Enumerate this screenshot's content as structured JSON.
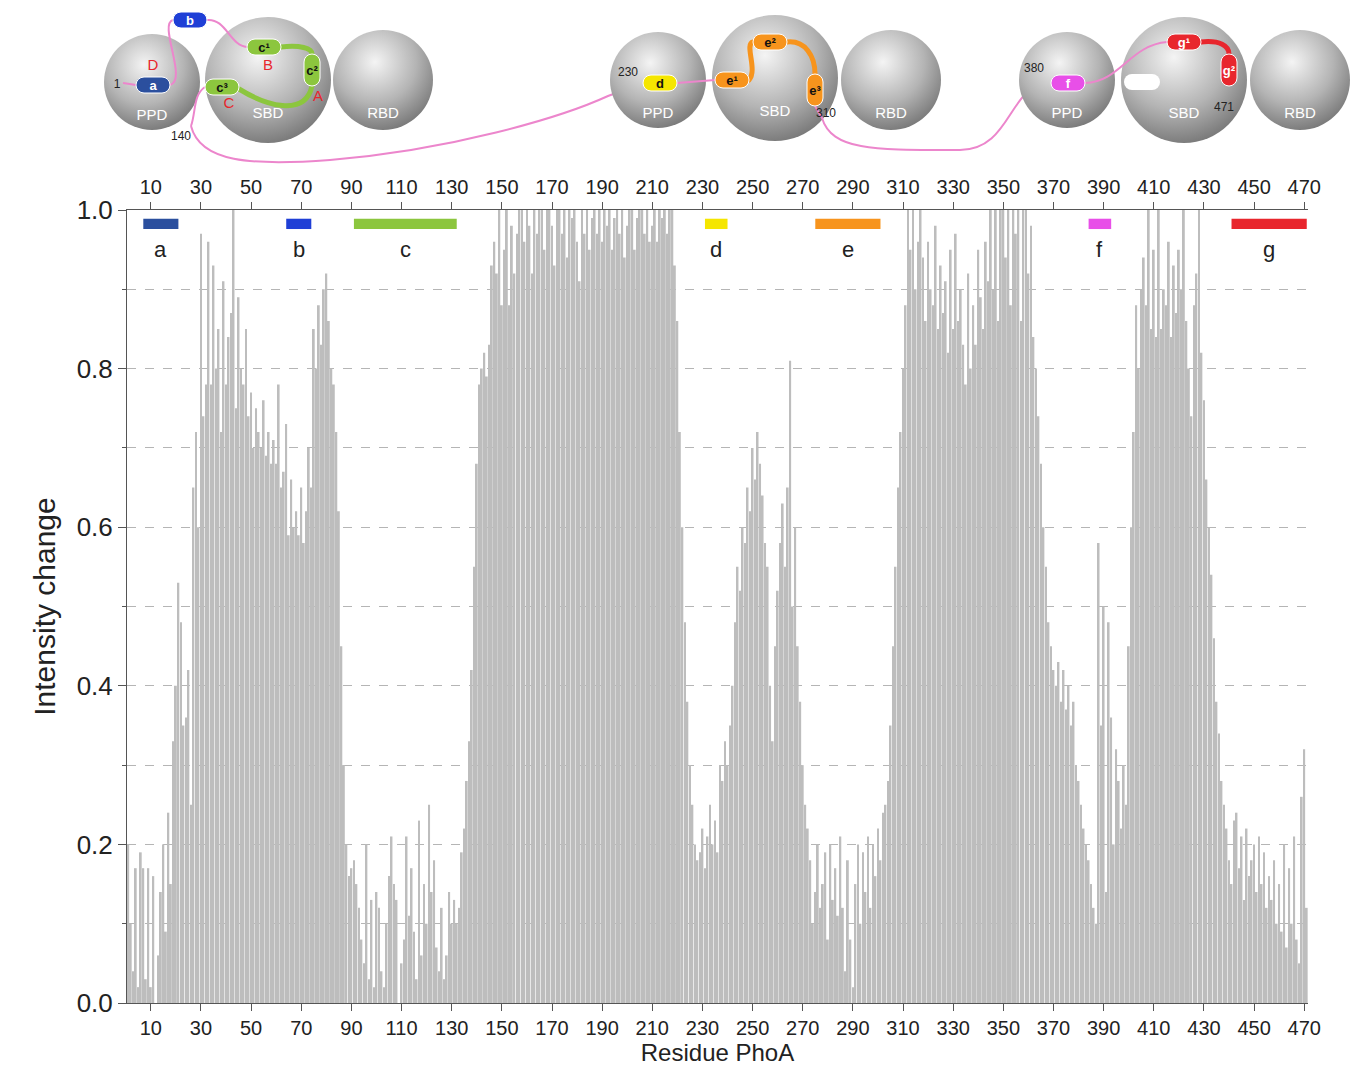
{
  "chart_data": {
    "type": "bar",
    "x_label": "Residue PhoA",
    "y_label": "Intensity change",
    "color": "#bdbdbd",
    "grid": true,
    "xlim": [
      0.5,
      471.5
    ],
    "xticks": [
      10,
      30,
      50,
      70,
      90,
      110,
      130,
      150,
      170,
      190,
      210,
      230,
      250,
      270,
      290,
      310,
      330,
      350,
      370,
      390,
      410,
      430,
      450,
      470
    ],
    "ylim": [
      0,
      1
    ],
    "yticks": [
      {
        "value": 0,
        "label": "0.0"
      },
      {
        "value": 0.2,
        "label": "0.2"
      },
      {
        "value": 0.4,
        "label": "0.4"
      },
      {
        "value": 0.6,
        "label": "0.6"
      },
      {
        "value": 0.8,
        "label": "0.8"
      },
      {
        "value": 1,
        "label": "1.0"
      }
    ],
    "yticks_minor": [
      0.1,
      0.3,
      0.5,
      0.7,
      0.9
    ],
    "segments": [
      {
        "label": "a",
        "start": 7,
        "end": 21,
        "color": "#2b4f9e"
      },
      {
        "label": "b",
        "start": 64,
        "end": 74,
        "color": "#1f3fd6"
      },
      {
        "label": "c",
        "start": 91,
        "end": 132,
        "color": "#8cc63e"
      },
      {
        "label": "d",
        "start": 231,
        "end": 240,
        "color": "#f5e600"
      },
      {
        "label": "e",
        "start": 275,
        "end": 301,
        "color": "#f7941d"
      },
      {
        "label": "f",
        "start": 384,
        "end": 393,
        "color": "#e84fe8"
      },
      {
        "label": "g",
        "start": 441,
        "end": 471,
        "color": "#e8262d"
      }
    ],
    "x": [
      1,
      2,
      3,
      4,
      5,
      6,
      7,
      8,
      9,
      10,
      11,
      12,
      13,
      14,
      15,
      16,
      17,
      18,
      19,
      20,
      21,
      22,
      23,
      24,
      25,
      26,
      27,
      28,
      29,
      30,
      31,
      32,
      33,
      34,
      35,
      36,
      37,
      38,
      39,
      40,
      41,
      42,
      43,
      44,
      45,
      46,
      47,
      48,
      49,
      50,
      51,
      52,
      53,
      54,
      55,
      56,
      57,
      58,
      59,
      60,
      61,
      62,
      63,
      64,
      65,
      66,
      67,
      68,
      69,
      70,
      71,
      72,
      73,
      74,
      75,
      76,
      77,
      78,
      79,
      80,
      81,
      82,
      83,
      84,
      85,
      86,
      87,
      88,
      89,
      90,
      91,
      92,
      93,
      94,
      95,
      96,
      97,
      98,
      99,
      100,
      101,
      102,
      103,
      104,
      105,
      106,
      107,
      108,
      109,
      110,
      111,
      112,
      113,
      114,
      115,
      116,
      117,
      118,
      119,
      120,
      121,
      122,
      123,
      124,
      125,
      126,
      127,
      128,
      129,
      130,
      131,
      132,
      133,
      134,
      135,
      136,
      137,
      138,
      139,
      140,
      141,
      142,
      143,
      144,
      145,
      146,
      147,
      148,
      149,
      150,
      151,
      152,
      153,
      154,
      155,
      156,
      157,
      158,
      159,
      160,
      161,
      162,
      163,
      164,
      165,
      166,
      167,
      168,
      169,
      170,
      171,
      172,
      173,
      174,
      175,
      176,
      177,
      178,
      179,
      180,
      181,
      182,
      183,
      184,
      185,
      186,
      187,
      188,
      189,
      190,
      191,
      192,
      193,
      194,
      195,
      196,
      197,
      198,
      199,
      200,
      201,
      202,
      203,
      204,
      205,
      206,
      207,
      208,
      209,
      210,
      211,
      212,
      213,
      214,
      215,
      216,
      217,
      218,
      219,
      220,
      221,
      222,
      223,
      224,
      225,
      226,
      227,
      228,
      229,
      230,
      231,
      232,
      233,
      234,
      235,
      236,
      237,
      238,
      239,
      240,
      241,
      242,
      243,
      244,
      245,
      246,
      247,
      248,
      249,
      250,
      251,
      252,
      253,
      254,
      255,
      256,
      257,
      258,
      259,
      260,
      261,
      262,
      263,
      264,
      265,
      266,
      267,
      268,
      269,
      270,
      271,
      272,
      273,
      274,
      275,
      276,
      277,
      278,
      279,
      280,
      281,
      282,
      283,
      284,
      285,
      286,
      287,
      288,
      289,
      290,
      291,
      292,
      293,
      294,
      295,
      296,
      297,
      298,
      299,
      300,
      301,
      302,
      303,
      304,
      305,
      306,
      307,
      308,
      309,
      310,
      311,
      312,
      313,
      314,
      315,
      316,
      317,
      318,
      319,
      320,
      321,
      322,
      323,
      324,
      325,
      326,
      327,
      328,
      329,
      330,
      331,
      332,
      333,
      334,
      335,
      336,
      337,
      338,
      339,
      340,
      341,
      342,
      343,
      344,
      345,
      346,
      347,
      348,
      349,
      350,
      351,
      352,
      353,
      354,
      355,
      356,
      357,
      358,
      359,
      360,
      361,
      362,
      363,
      364,
      365,
      366,
      367,
      368,
      369,
      370,
      371,
      372,
      373,
      374,
      375,
      376,
      377,
      378,
      379,
      380,
      381,
      382,
      383,
      384,
      385,
      386,
      387,
      388,
      389,
      390,
      391,
      392,
      393,
      394,
      395,
      396,
      397,
      398,
      399,
      400,
      401,
      402,
      403,
      404,
      405,
      406,
      407,
      408,
      409,
      410,
      411,
      412,
      413,
      414,
      415,
      416,
      417,
      418,
      419,
      420,
      421,
      422,
      423,
      424,
      425,
      426,
      427,
      428,
      429,
      430,
      431,
      432,
      433,
      434,
      435,
      436,
      437,
      438,
      439,
      440,
      441,
      442,
      443,
      444,
      445,
      446,
      447,
      448,
      449,
      450,
      451,
      452,
      453,
      454,
      455,
      456,
      457,
      458,
      459,
      460,
      461,
      462,
      463,
      464,
      465,
      466,
      467,
      468,
      469,
      470,
      471
    ],
    "values": [
      0.2,
      0.1,
      0.04,
      0.17,
      0.02,
      0.19,
      0.17,
      0.03,
      0.17,
      0.02,
      0.16,
      0.0,
      0.06,
      0.14,
      0.2,
      0.09,
      0.24,
      0.15,
      0.33,
      0.4,
      0.53,
      0.48,
      0.35,
      0.36,
      0.42,
      0.25,
      0.65,
      0.72,
      0.6,
      0.97,
      0.74,
      0.78,
      0.96,
      0.78,
      0.93,
      0.8,
      0.85,
      0.72,
      0.91,
      0.78,
      0.84,
      0.87,
      1.0,
      0.75,
      0.89,
      0.8,
      0.78,
      0.85,
      0.74,
      0.77,
      0.7,
      0.75,
      0.72,
      0.7,
      0.76,
      0.69,
      0.72,
      0.68,
      0.71,
      0.68,
      0.78,
      0.65,
      0.67,
      0.73,
      0.59,
      0.66,
      0.6,
      0.62,
      0.59,
      0.65,
      0.58,
      0.62,
      0.7,
      0.65,
      0.85,
      0.8,
      0.88,
      0.83,
      0.9,
      0.92,
      0.86,
      0.8,
      0.78,
      0.72,
      0.62,
      0.45,
      0.3,
      0.2,
      0.16,
      0.17,
      0.18,
      0.15,
      0.12,
      0.08,
      0.05,
      0.2,
      0.03,
      0.13,
      0.02,
      0.14,
      0.12,
      0.04,
      0.02,
      0.1,
      0.16,
      0.21,
      0.15,
      0.13,
      0.0,
      0.05,
      0.08,
      0.21,
      0.11,
      0.17,
      0.09,
      0.03,
      0.23,
      0.06,
      0.15,
      0.1,
      0.25,
      0.14,
      0.18,
      0.07,
      0.04,
      0.12,
      0.03,
      0.06,
      0.14,
      0.1,
      0.13,
      0.1,
      0.12,
      0.19,
      0.22,
      0.28,
      0.33,
      0.42,
      0.55,
      0.68,
      0.78,
      0.8,
      0.82,
      0.79,
      0.83,
      0.93,
      0.96,
      0.92,
      1.0,
      0.88,
      0.95,
      1.0,
      0.88,
      0.98,
      0.92,
      0.97,
      1.0,
      1.0,
      0.96,
      1.0,
      0.98,
      0.92,
      1.0,
      0.97,
      1.0,
      1.0,
      0.95,
      1.0,
      1.0,
      0.98,
      0.93,
      1.0,
      1.0,
      0.97,
      1.0,
      0.94,
      1.0,
      0.99,
      1.0,
      0.96,
      0.91,
      1.0,
      0.97,
      1.0,
      0.95,
      0.99,
      1.0,
      0.97,
      1.0,
      0.96,
      1.0,
      0.98,
      1.0,
      0.95,
      0.99,
      1.0,
      0.97,
      1.0,
      0.94,
      0.98,
      1.0,
      1.0,
      0.95,
      0.99,
      1.0,
      1.0,
      0.97,
      1.0,
      0.96,
      0.98,
      1.0,
      0.96,
      1.0,
      0.99,
      1.0,
      0.97,
      1.0,
      1.0,
      0.93,
      0.86,
      0.72,
      0.6,
      0.48,
      0.38,
      0.3,
      0.25,
      0.2,
      0.18,
      0.19,
      0.22,
      0.17,
      0.21,
      0.25,
      0.2,
      0.23,
      0.19,
      0.3,
      0.28,
      0.33,
      0.3,
      0.35,
      0.4,
      0.48,
      0.55,
      0.52,
      0.6,
      0.58,
      0.65,
      0.62,
      0.7,
      0.66,
      0.72,
      0.68,
      0.64,
      0.58,
      0.55,
      0.4,
      0.33,
      0.45,
      0.52,
      0.58,
      0.63,
      0.55,
      0.65,
      0.81,
      0.5,
      0.6,
      0.45,
      0.38,
      0.3,
      0.25,
      0.22,
      0.18,
      0.1,
      0.14,
      0.2,
      0.12,
      0.15,
      0.19,
      0.08,
      0.2,
      0.13,
      0.17,
      0.11,
      0.21,
      0.12,
      0.04,
      0.18,
      0.08,
      0.02,
      0.15,
      0.2,
      0.1,
      0.19,
      0.14,
      0.21,
      0.12,
      0.2,
      0.16,
      0.22,
      0.18,
      0.24,
      0.25,
      0.28,
      0.35,
      0.45,
      0.55,
      0.65,
      0.72,
      0.8,
      0.88,
      1.0,
      0.95,
      1.0,
      0.9,
      0.96,
      1.0,
      0.94,
      0.86,
      0.96,
      0.9,
      0.88,
      0.98,
      0.85,
      0.93,
      0.87,
      0.91,
      0.82,
      0.95,
      0.85,
      0.97,
      0.86,
      0.9,
      0.83,
      0.78,
      0.92,
      0.8,
      0.88,
      0.83,
      0.95,
      0.89,
      0.85,
      0.96,
      0.91,
      1.0,
      0.9,
      1.0,
      0.86,
      1.0,
      1.0,
      0.94,
      1.0,
      0.88,
      1.0,
      0.97,
      1.0,
      0.86,
      1.0,
      1.0,
      0.92,
      0.98,
      0.84,
      0.8,
      0.74,
      0.68,
      0.6,
      0.55,
      0.48,
      0.45,
      0.42,
      0.4,
      0.43,
      0.38,
      0.42,
      0.37,
      0.4,
      0.35,
      0.38,
      0.3,
      0.28,
      0.25,
      0.22,
      0.2,
      0.18,
      0.15,
      0.12,
      0.1,
      0.58,
      0.35,
      0.5,
      0.14,
      0.48,
      0.36,
      0.2,
      0.32,
      0.28,
      0.22,
      0.3,
      0.25,
      0.45,
      0.6,
      0.72,
      0.88,
      0.8,
      0.9,
      0.94,
      0.88,
      1.0,
      0.85,
      0.95,
      0.84,
      1.0,
      0.85,
      0.9,
      0.88,
      0.96,
      0.84,
      0.93,
      0.87,
      0.95,
      0.9,
      1.0,
      0.86,
      0.8,
      0.74,
      0.88,
      0.92,
      1.0,
      0.82,
      0.76,
      0.66,
      0.6,
      0.54,
      0.46,
      0.38,
      0.34,
      0.28,
      0.25,
      0.22,
      0.18,
      0.15,
      0.23,
      0.24,
      0.17,
      0.21,
      0.13,
      0.22,
      0.16,
      0.18,
      0.2,
      0.14,
      0.21,
      0.15,
      0.19,
      0.12,
      0.16,
      0.13,
      0.18,
      0.1,
      0.15,
      0.09,
      0.2,
      0.07,
      0.17,
      0.1,
      0.21,
      0.08,
      0.05,
      0.26,
      0.32,
      0.12
    ]
  },
  "diagram": {
    "units": [
      {
        "domains": [
          "PPD",
          "SBD",
          "RBD"
        ],
        "elements": [
          {
            "label": "a",
            "segment": "a"
          },
          {
            "label": "b",
            "segment": "b"
          },
          {
            "label": "c¹",
            "segment": "c"
          },
          {
            "label": "c²",
            "segment": "c"
          },
          {
            "label": "c³",
            "segment": "c"
          }
        ],
        "residues": [
          1,
          140
        ],
        "letters": [
          "A",
          "B",
          "C",
          "D"
        ]
      },
      {
        "domains": [
          "PPD",
          "SBD",
          "RBD"
        ],
        "elements": [
          {
            "label": "d",
            "segment": "d"
          },
          {
            "label": "e¹",
            "segment": "e"
          },
          {
            "label": "e²",
            "segment": "e"
          },
          {
            "label": "e³",
            "segment": "e"
          }
        ],
        "residues": [
          230,
          310
        ],
        "letters": []
      },
      {
        "domains": [
          "PPD",
          "SBD",
          "RBD"
        ],
        "elements": [
          {
            "label": "f",
            "segment": "f"
          },
          {
            "label": "g¹",
            "segment": "g"
          },
          {
            "label": "g²",
            "segment": "g"
          }
        ],
        "residues": [
          380,
          471
        ],
        "letters": []
      }
    ]
  }
}
